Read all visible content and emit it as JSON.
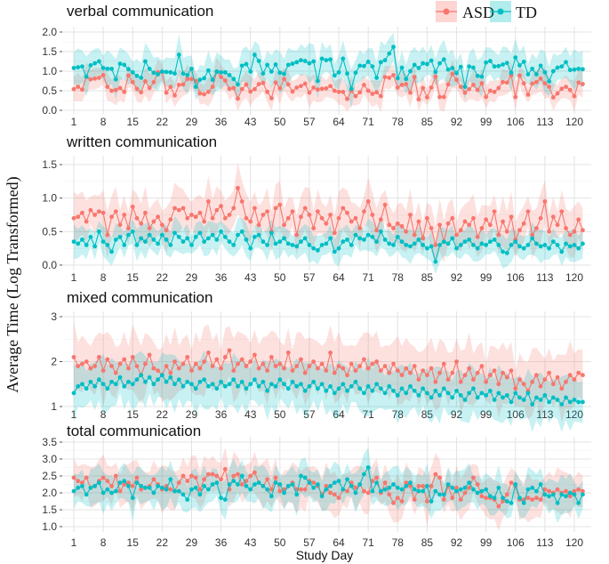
{
  "chart_data": [
    {
      "type": "line",
      "title": "verbal communication",
      "ylim": [
        0,
        2.0
      ],
      "yticks": [
        0.0,
        0.5,
        1.0,
        1.5,
        2.0
      ],
      "series": [
        {
          "name": "ASD",
          "color": "#F8766D",
          "ci_halfwidth": 0.3,
          "values": [
            0.54,
            0.6,
            0.53,
            0.85,
            0.79,
            0.81,
            0.83,
            0.9,
            0.6,
            0.5,
            0.52,
            0.57,
            0.47,
            0.89,
            0.72,
            0.55,
            0.46,
            0.74,
            0.57,
            0.72,
            0.97,
            0.98,
            0.45,
            0.6,
            0.38,
            0.65,
            0.66,
            0.8,
            0.8,
            0.75,
            0.43,
            0.41,
            0.47,
            0.6,
            0.99,
            0.85,
            0.76,
            0.55,
            0.57,
            0.3,
            0.54,
            0.66,
            0.48,
            0.54,
            0.67,
            0.7,
            0.47,
            0.31,
            0.71,
            0.56,
            0.8,
            0.66,
            0.48,
            0.58,
            0.62,
            0.68,
            0.45,
            0.58,
            0.53,
            0.55,
            0.56,
            0.62,
            0.5,
            0.47,
            0.47,
            0.29,
            0.5,
            0.36,
            0.46,
            0.65,
            0.5,
            0.42,
            0.46,
            0.36,
            0.85,
            0.83,
            0.9,
            0.58,
            0.65,
            0.67,
            0.45,
            0.85,
            0.28,
            0.57,
            0.33,
            0.58,
            0.86,
            0.34,
            0.34,
            0.66,
            0.93,
            0.78,
            0.6,
            0.45,
            0.54,
            0.65,
            0.52,
            0.69,
            0.34,
            0.5,
            0.47,
            0.57,
            0.72,
            0.71,
            0.89,
            0.34,
            0.89,
            0.69,
            0.4,
            0.68,
            0.72,
            0.81,
            0.69,
            0.6,
            0.33,
            0.43,
            0.55,
            0.6,
            0.52,
            0.36,
            0.71,
            0.67
          ]
        },
        {
          "name": "TD",
          "color": "#00BFC4",
          "ci_halfwidth": 0.4,
          "values": [
            1.08,
            1.1,
            1.12,
            0.86,
            1.15,
            1.2,
            1.25,
            1.08,
            1.06,
            1.06,
            0.79,
            1.19,
            1.16,
            1.05,
            0.97,
            0.88,
            0.83,
            1.25,
            1.06,
            0.96,
            0.92,
            0.99,
            0.98,
            0.97,
            0.94,
            1.42,
            0.94,
            0.9,
            1.06,
            0.6,
            0.78,
            0.82,
            1.02,
            0.78,
            0.99,
            0.97,
            0.97,
            0.9,
            0.8,
            0.66,
            1.14,
            1.18,
            0.99,
            1.42,
            1.26,
            0.94,
            1.16,
            0.99,
            1.17,
            0.96,
            0.93,
            1.16,
            1.19,
            1.23,
            1.28,
            1.26,
            1.2,
            1.25,
            0.75,
            1.32,
            1.28,
            1.3,
            0.89,
            0.97,
            1.32,
            0.94,
            0.55,
            0.96,
            1.14,
            1.13,
            1.24,
            1.12,
            0.83,
            1.23,
            1.28,
            1.45,
            1.62,
            0.82,
            1.09,
            0.8,
            1.0,
            1.16,
            1.08,
            1.2,
            1.18,
            1.27,
            0.98,
            1.2,
            1.3,
            1.04,
            1.08,
            0.95,
            1.11,
            0.6,
            1.12,
            1.09,
            0.88,
            0.86,
            1.22,
            1.26,
            1.12,
            1.13,
            1.17,
            1.21,
            0.96,
            1.35,
            1.15,
            1.24,
            0.92,
            1.06,
            0.92,
            1.14,
            0.97,
            0.74,
            1.0,
            1.09,
            1.12,
            1.23,
            1.03,
            1.04,
            1.06,
            1.05
          ]
        }
      ]
    },
    {
      "type": "line",
      "title": "written communication",
      "ylim": [
        0,
        1.5
      ],
      "yticks": [
        0.0,
        0.5,
        1.0,
        1.5
      ],
      "series": [
        {
          "name": "ASD",
          "color": "#F8766D",
          "ci_halfwidth": 0.3,
          "values": [
            0.7,
            0.72,
            0.78,
            0.65,
            0.82,
            0.75,
            0.8,
            0.78,
            0.45,
            0.72,
            0.8,
            0.6,
            0.75,
            0.55,
            0.87,
            0.7,
            0.62,
            0.78,
            0.55,
            0.65,
            0.72,
            0.6,
            0.52,
            0.68,
            0.85,
            0.82,
            0.85,
            0.7,
            0.75,
            0.72,
            0.78,
            0.65,
            0.95,
            0.7,
            0.82,
            0.88,
            0.7,
            0.75,
            0.85,
            1.15,
            0.95,
            0.7,
            0.65,
            0.85,
            0.6,
            0.75,
            0.8,
            0.5,
            0.85,
            0.9,
            0.6,
            0.7,
            0.8,
            0.45,
            0.72,
            0.85,
            0.75,
            0.55,
            0.8,
            0.7,
            0.62,
            0.75,
            0.48,
            0.7,
            0.85,
            0.78,
            0.65,
            0.7,
            0.55,
            0.8,
            0.95,
            0.75,
            0.52,
            0.68,
            0.9,
            0.6,
            0.55,
            0.62,
            0.58,
            0.5,
            0.75,
            0.45,
            0.65,
            0.4,
            0.7,
            0.55,
            0.3,
            0.6,
            0.35,
            0.62,
            0.7,
            0.45,
            0.52,
            0.65,
            0.6,
            0.7,
            0.42,
            0.55,
            0.68,
            0.6,
            0.8,
            0.45,
            0.65,
            0.5,
            0.72,
            0.38,
            0.52,
            0.62,
            0.8,
            0.45,
            0.55,
            0.7,
            0.95,
            0.5,
            0.72,
            0.6,
            0.8,
            0.55,
            0.45,
            0.5,
            0.68,
            0.52
          ]
        },
        {
          "name": "TD",
          "color": "#00BFC4",
          "ci_halfwidth": 0.2,
          "values": [
            0.35,
            0.32,
            0.38,
            0.3,
            0.42,
            0.28,
            0.5,
            0.35,
            0.3,
            0.2,
            0.38,
            0.42,
            0.3,
            0.45,
            0.5,
            0.3,
            0.4,
            0.35,
            0.45,
            0.38,
            0.32,
            0.45,
            0.38,
            0.3,
            0.48,
            0.42,
            0.35,
            0.4,
            0.3,
            0.42,
            0.48,
            0.35,
            0.4,
            0.45,
            0.38,
            0.5,
            0.42,
            0.35,
            0.3,
            0.45,
            0.5,
            0.38,
            0.25,
            0.42,
            0.45,
            0.35,
            0.3,
            0.48,
            0.32,
            0.35,
            0.4,
            0.32,
            0.3,
            0.28,
            0.35,
            0.4,
            0.3,
            0.25,
            0.22,
            0.3,
            0.32,
            0.4,
            0.2,
            0.25,
            0.35,
            0.38,
            0.3,
            0.45,
            0.4,
            0.38,
            0.45,
            0.42,
            0.35,
            0.5,
            0.38,
            0.32,
            0.3,
            0.42,
            0.35,
            0.3,
            0.28,
            0.32,
            0.38,
            0.3,
            0.25,
            0.28,
            0.05,
            0.3,
            0.35,
            0.32,
            0.4,
            0.25,
            0.3,
            0.35,
            0.38,
            0.3,
            0.25,
            0.32,
            0.3,
            0.35,
            0.38,
            0.3,
            0.2,
            0.18,
            0.3,
            0.35,
            0.28,
            0.25,
            0.3,
            0.4,
            0.32,
            0.28,
            0.3,
            0.25,
            0.35,
            0.3,
            0.2,
            0.32,
            0.28,
            0.3,
            0.25,
            0.32
          ]
        }
      ]
    },
    {
      "type": "line",
      "title": "mixed communication",
      "ylim": [
        1,
        3
      ],
      "yticks": [
        1,
        2,
        3
      ],
      "series": [
        {
          "name": "ASD",
          "color": "#F8766D",
          "ci_halfwidth": 0.6,
          "values": [
            2.1,
            1.9,
            1.95,
            2.0,
            1.85,
            1.9,
            2.1,
            1.8,
            2.05,
            1.9,
            1.75,
            1.95,
            2.05,
            1.85,
            2.1,
            1.9,
            1.7,
            1.95,
            2.15,
            1.85,
            1.8,
            1.7,
            1.9,
            1.75,
            2.0,
            1.85,
            1.95,
            2.1,
            1.8,
            1.95,
            1.85,
            2.0,
            2.2,
            1.9,
            2.05,
            1.85,
            2.1,
            2.25,
            1.8,
            1.95,
            2.05,
            1.9,
            2.0,
            2.15,
            1.85,
            1.95,
            1.8,
            2.1,
            1.9,
            1.95,
            1.85,
            2.2,
            1.8,
            1.9,
            2.05,
            1.75,
            1.9,
            2.0,
            1.85,
            1.95,
            1.8,
            2.2,
            1.75,
            1.9,
            1.85,
            1.7,
            1.95,
            1.8,
            1.9,
            2.05,
            1.85,
            1.95,
            2.0,
            1.8,
            1.9,
            1.75,
            1.95,
            1.8,
            1.7,
            1.85,
            1.75,
            1.9,
            1.6,
            1.8,
            1.7,
            1.85,
            1.55,
            1.75,
            1.95,
            1.6,
            1.75,
            2.0,
            1.55,
            1.7,
            1.85,
            1.6,
            1.75,
            1.9,
            1.55,
            1.7,
            1.8,
            1.5,
            1.75,
            1.65,
            1.8,
            1.4,
            1.6,
            1.5,
            1.35,
            1.55,
            1.7,
            1.45,
            1.6,
            1.75,
            1.5,
            1.65,
            1.4,
            1.55,
            1.7,
            1.6,
            1.75,
            1.7
          ]
        },
        {
          "name": "TD",
          "color": "#00BFC4",
          "ci_halfwidth": 0.5,
          "values": [
            1.3,
            1.45,
            1.5,
            1.4,
            1.55,
            1.45,
            1.6,
            1.5,
            1.4,
            1.55,
            1.5,
            1.65,
            1.45,
            1.55,
            1.5,
            1.6,
            1.7,
            1.55,
            1.65,
            1.5,
            1.6,
            1.7,
            1.55,
            1.65,
            1.5,
            1.6,
            1.45,
            1.55,
            1.5,
            1.4,
            1.55,
            1.6,
            1.45,
            1.5,
            1.4,
            1.55,
            1.45,
            1.5,
            1.6,
            1.45,
            1.55,
            1.4,
            1.5,
            1.6,
            1.45,
            1.55,
            1.35,
            1.5,
            1.45,
            1.6,
            1.5,
            1.4,
            1.55,
            1.45,
            1.5,
            1.35,
            1.45,
            1.55,
            1.4,
            1.5,
            1.35,
            1.45,
            1.3,
            1.4,
            1.5,
            1.35,
            1.45,
            1.55,
            1.4,
            1.3,
            1.45,
            1.35,
            1.5,
            1.4,
            1.3,
            1.45,
            1.35,
            1.25,
            1.4,
            1.3,
            1.45,
            1.35,
            1.25,
            1.4,
            1.3,
            1.2,
            1.35,
            1.25,
            1.4,
            1.3,
            1.2,
            1.35,
            1.25,
            1.15,
            1.3,
            1.4,
            1.2,
            1.3,
            1.25,
            1.35,
            1.15,
            1.3,
            1.2,
            1.25,
            1.1,
            1.3,
            1.2,
            1.15,
            1.3,
            1.05,
            1.2,
            1.15,
            1.25,
            1.1,
            1.2,
            1.15,
            1.05,
            1.2,
            1.1,
            1.15,
            1.1,
            1.1
          ]
        }
      ]
    },
    {
      "type": "line",
      "title": "total communication",
      "ylim": [
        1.0,
        3.5
      ],
      "yticks": [
        1.0,
        1.5,
        2.0,
        2.5,
        3.0,
        3.5
      ],
      "series": [
        {
          "name": "ASD",
          "color": "#F8766D",
          "ci_halfwidth": 0.55,
          "values": [
            2.45,
            2.35,
            2.3,
            2.45,
            2.15,
            2.2,
            2.35,
            2.45,
            2.35,
            2.2,
            2.5,
            2.05,
            2.25,
            2.3,
            2.2,
            2.45,
            2.1,
            2.15,
            2.2,
            2.4,
            2.25,
            2.1,
            2.2,
            2.1,
            2.05,
            2.3,
            2.5,
            2.35,
            2.5,
            2.45,
            2.1,
            2.4,
            2.55,
            2.55,
            2.5,
            2.4,
            2.7,
            2.1,
            2.5,
            2.55,
            2.25,
            2.35,
            2.5,
            2.6,
            2.3,
            2.2,
            2.4,
            2.1,
            2.45,
            2.05,
            2.1,
            2.2,
            2.3,
            2.1,
            2.1,
            2.1,
            2.35,
            2.3,
            2.2,
            1.95,
            2.2,
            2.0,
            1.95,
            1.85,
            2.1,
            2.05,
            2.3,
            2.15,
            2.25,
            2.05,
            2.0,
            2.35,
            2.45,
            2.0,
            2.3,
            1.95,
            1.7,
            1.85,
            1.75,
            2.3,
            2.2,
            1.8,
            2.2,
            2.2,
            1.75,
            2.2,
            2.55,
            2.45,
            1.8,
            2.2,
            1.85,
            2.15,
            1.8,
            2.0,
            2.15,
            2.45,
            2.25,
            1.9,
            1.85,
            1.85,
            1.8,
            1.6,
            1.75,
            1.95,
            2.3,
            2.2,
            1.8,
            1.8,
            1.85,
            1.8,
            1.85,
            1.8,
            2.1,
            2.05,
            2.0,
            2.1,
            2.0,
            2.05,
            1.9,
            2.05,
            2.1,
            2.05
          ]
        },
        {
          "name": "TD",
          "color": "#00BFC4",
          "ci_halfwidth": 0.5,
          "values": [
            2.05,
            2.15,
            2.2,
            1.95,
            2.15,
            2.2,
            2.3,
            2.0,
            2.1,
            2.0,
            2.05,
            2.3,
            2.35,
            2.2,
            1.85,
            2.3,
            2.2,
            2.15,
            2.15,
            2.0,
            2.2,
            2.15,
            2.1,
            2.4,
            2.05,
            2.05,
            1.95,
            1.8,
            2.1,
            2.15,
            1.95,
            2.2,
            2.1,
            2.25,
            2.3,
            1.85,
            1.8,
            2.25,
            2.35,
            2.25,
            2.5,
            2.2,
            2.1,
            2.25,
            2.3,
            2.2,
            2.1,
            1.9,
            2.3,
            2.25,
            2.0,
            2.2,
            2.25,
            1.95,
            2.5,
            2.45,
            2.3,
            2.15,
            2.25,
            1.9,
            2.1,
            2.2,
            2.3,
            2.35,
            2.1,
            2.4,
            2.2,
            2.0,
            2.25,
            2.55,
            2.75,
            2.05,
            2.3,
            2.05,
            2.1,
            2.15,
            2.25,
            2.15,
            2.1,
            2.2,
            2.3,
            2.1,
            2.05,
            2.05,
            2.2,
            1.75,
            2.05,
            1.95,
            1.95,
            2.25,
            2.15,
            2.05,
            2.1,
            2.15,
            2.3,
            2.1,
            2.0,
            2.05,
            2.1,
            1.9,
            1.85,
            2.15,
            1.85,
            1.75,
            1.7,
            2.25,
            1.85,
            1.7,
            2.1,
            2.15,
            2.05,
            2.25,
            1.95,
            1.9,
            1.95,
            1.7,
            1.95,
            1.9,
            2.0,
            1.95,
            1.7,
            1.95
          ]
        }
      ]
    }
  ],
  "x_start_day": 1,
  "xticks": [
    1,
    8,
    15,
    22,
    29,
    36,
    43,
    50,
    57,
    64,
    71,
    78,
    85,
    92,
    99,
    106,
    113,
    120
  ],
  "xlabel": "Study Day",
  "ylabel": "Average Time (Log Transformed)",
  "legend": {
    "placement": "top-right",
    "entries": [
      "ASD",
      "TD"
    ]
  },
  "grid": true
}
